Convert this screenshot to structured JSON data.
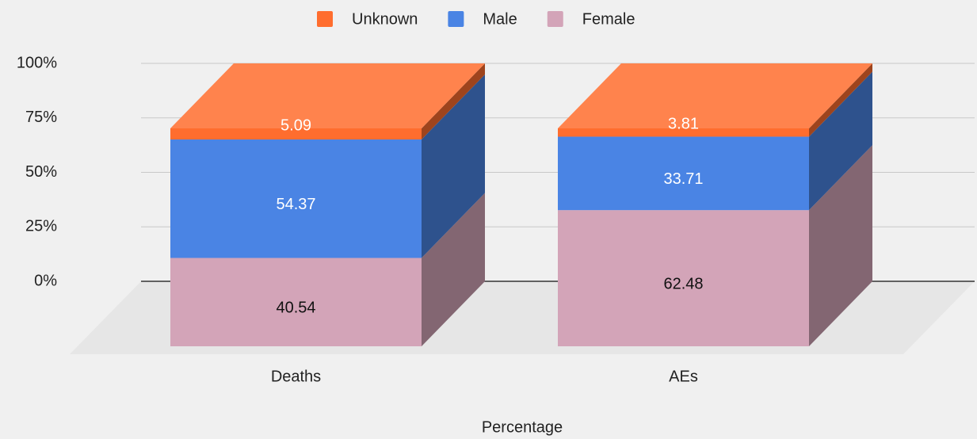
{
  "chart_data": {
    "type": "stacked-bar-3d",
    "x_axis_label": "Percentage",
    "categories": [
      "Deaths",
      "AEs"
    ],
    "series": [
      {
        "name": "Unknown",
        "color": "#ff6d2e",
        "values": [
          5.09,
          3.81
        ]
      },
      {
        "name": "Male",
        "color": "#4a84e4",
        "values": [
          54.37,
          33.71
        ]
      },
      {
        "name": "Female",
        "color": "#d3a4b8",
        "values": [
          40.54,
          62.48
        ]
      }
    ],
    "ylim": [
      0,
      100
    ],
    "yticks": [
      {
        "value": 0,
        "label": "0%"
      },
      {
        "value": 25,
        "label": "25%"
      },
      {
        "value": 50,
        "label": "50%"
      },
      {
        "value": 75,
        "label": "75%"
      },
      {
        "value": 100,
        "label": "100%"
      }
    ],
    "grid": true,
    "legend": "top"
  }
}
